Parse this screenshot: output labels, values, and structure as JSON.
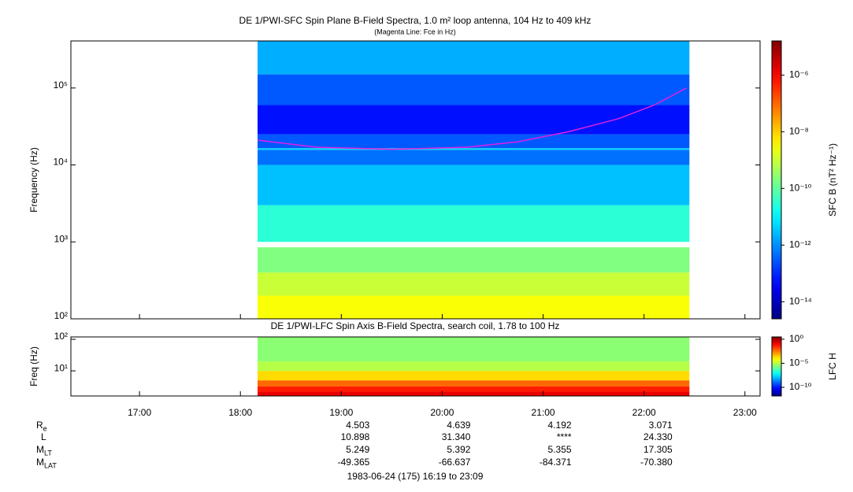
{
  "chart_data": [
    {
      "type": "spectrogram",
      "title": "DE 1/PWI-SFC  Spin Plane B-Field Spectra, 1.0 m² loop antenna, 104 Hz to 409 kHz",
      "subtitle": "(Magenta Line: Fce in Hz)",
      "y_label": "Frequency (Hz)",
      "y_scale": "log",
      "xlim": [
        16.32,
        23.15
      ],
      "ylim": [
        100,
        409000
      ],
      "yticks": [
        {
          "value": 100,
          "label": "10²"
        },
        {
          "value": 1000,
          "label": "10³"
        },
        {
          "value": 10000,
          "label": "10⁴"
        },
        {
          "value": 100000,
          "label": "10⁵"
        }
      ],
      "time_range": [
        18.17,
        22.45
      ],
      "bands": [
        {
          "f": [
            100,
            200
          ],
          "value": 3e-09
        },
        {
          "f": [
            200,
            400
          ],
          "value": 1e-09
        },
        {
          "f": [
            400,
            850
          ],
          "value": 2e-10
        },
        {
          "f": [
            1000,
            3000
          ],
          "value": 3e-11
        },
        {
          "f": [
            3000,
            10000
          ],
          "value": 3e-12
        },
        {
          "f": [
            10000,
            15700
          ],
          "value": 5e-13
        },
        {
          "f": [
            15700,
            16500
          ],
          "value": 5e-12
        },
        {
          "f": [
            16500,
            25000
          ],
          "value": 3e-13
        },
        {
          "f": [
            25000,
            60000
          ],
          "value": 6e-14
        },
        {
          "f": [
            60000,
            150000
          ],
          "value": 3e-13
        },
        {
          "f": [
            150000,
            409000
          ],
          "value": 2e-12
        }
      ],
      "series": [
        {
          "name": "Fce",
          "color": "#e020e0",
          "x": [
            18.17,
            18.75,
            19.5,
            20.25,
            20.75,
            21.25,
            21.75,
            22.1,
            22.42
          ],
          "values": [
            21000,
            17000,
            16000,
            17000,
            20000,
            27000,
            40000,
            60000,
            100000
          ]
        }
      ],
      "color_label": "SFC B (nT² Hz⁻¹)",
      "clim": [
        2.5e-15,
        1.6e-05
      ],
      "cticks": [
        {
          "value": 1e-14,
          "label": "10⁻¹⁴"
        },
        {
          "value": 1e-12,
          "label": "10⁻¹²"
        },
        {
          "value": 1e-10,
          "label": "10⁻¹⁰"
        },
        {
          "value": 1e-08,
          "label": "10⁻⁸"
        },
        {
          "value": 1e-06,
          "label": "10⁻⁶"
        }
      ]
    },
    {
      "type": "spectrogram",
      "title": "DE 1/PWI-LFC  Spin Axis B-Field Spectra, search coil, 1.78 to 100 Hz",
      "y_label": "Freq (Hz)",
      "y_scale": "log",
      "xlim": [
        16.32,
        23.15
      ],
      "ylim": [
        1.6,
        119
      ],
      "yticks": [
        {
          "value": 10,
          "label": "10¹"
        },
        {
          "value": 100,
          "label": "10²"
        }
      ],
      "xticks": [
        {
          "value": 17,
          "label": "17:00"
        },
        {
          "value": 18,
          "label": "18:00"
        },
        {
          "value": 19,
          "label": "19:00"
        },
        {
          "value": 20,
          "label": "20:00"
        },
        {
          "value": 21,
          "label": "21:00"
        },
        {
          "value": 22,
          "label": "22:00"
        },
        {
          "value": 23,
          "label": "23:00"
        }
      ],
      "time_range": [
        18.17,
        22.45
      ],
      "bands": [
        {
          "f": [
            1.6,
            2.2
          ],
          "value": 0.15
        },
        {
          "f": [
            2.2,
            3.2
          ],
          "value": 0.04
        },
        {
          "f": [
            3.2,
            5
          ],
          "value": 0.005
        },
        {
          "f": [
            5,
            10
          ],
          "value": 0.0002
        },
        {
          "f": [
            10,
            20
          ],
          "value": 1e-05
        },
        {
          "f": [
            20,
            119
          ],
          "value": 3e-06
        }
      ],
      "color_label": "LFC H",
      "clim": [
        1.6e-12,
        3
      ],
      "cticks": [
        {
          "value": 1e-10,
          "label": "10⁻¹⁰"
        },
        {
          "value": 1e-05,
          "label": "10⁻⁵"
        },
        {
          "value": 1,
          "label": "10⁰"
        }
      ]
    }
  ],
  "ephemeris": {
    "x": [
      19,
      20,
      21,
      22
    ],
    "rows": [
      {
        "label": "R",
        "sub": "e",
        "values": [
          "4.503",
          "4.639",
          "4.192",
          "3.071"
        ]
      },
      {
        "label": "L",
        "values": [
          "10.898",
          "31.340",
          "****",
          "24.330"
        ]
      },
      {
        "label": "M",
        "sub": "LT",
        "values": [
          "5.249",
          "5.392",
          "5.355",
          "17.305"
        ]
      },
      {
        "label": "M",
        "sub": "LAT",
        "values": [
          "-49.365",
          "-66.637",
          "-84.371",
          "-70.380"
        ]
      }
    ]
  },
  "footer": "1983-06-24 (175) 16:19 to 23:09"
}
